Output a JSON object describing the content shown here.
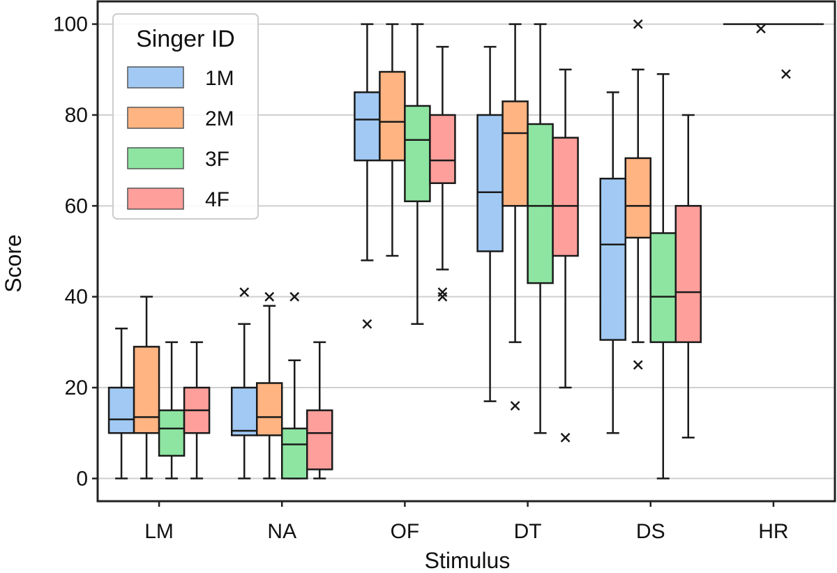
{
  "chart_data": {
    "type": "box",
    "xlabel": "Stimulus",
    "ylabel": "Score",
    "ylim": [
      -5,
      105
    ],
    "yticks": [
      0,
      20,
      40,
      60,
      80,
      100
    ],
    "grid": "horizontal",
    "categories": [
      "LM",
      "NA",
      "OF",
      "DT",
      "DS",
      "HR"
    ],
    "legend": {
      "title": "Singer ID",
      "position": "upper-left",
      "entries": [
        "1M",
        "2M",
        "3F",
        "4F"
      ]
    },
    "series": [
      {
        "name": "1M",
        "color": "#a1c9f4",
        "boxes": [
          {
            "category": "LM",
            "whislo": 0,
            "q1": 10,
            "med": 13,
            "q3": 20,
            "whishi": 33,
            "fliers": []
          },
          {
            "category": "NA",
            "whislo": 0,
            "q1": 9.5,
            "med": 10.5,
            "q3": 20,
            "whishi": 34,
            "fliers": [
              41
            ]
          },
          {
            "category": "OF",
            "whislo": 48,
            "q1": 70,
            "med": 79,
            "q3": 85,
            "whishi": 100,
            "fliers": [
              34
            ]
          },
          {
            "category": "DT",
            "whislo": 17,
            "q1": 50,
            "med": 63,
            "q3": 80,
            "whishi": 95,
            "fliers": []
          },
          {
            "category": "DS",
            "whislo": 10,
            "q1": 30.5,
            "med": 51.5,
            "q3": 66,
            "whishi": 85,
            "fliers": []
          },
          {
            "category": "HR",
            "whislo": 100,
            "q1": 100,
            "med": 100,
            "q3": 100,
            "whishi": 100,
            "fliers": []
          }
        ]
      },
      {
        "name": "2M",
        "color": "#ffb482",
        "boxes": [
          {
            "category": "LM",
            "whislo": 0,
            "q1": 10,
            "med": 13.5,
            "q3": 29,
            "whishi": 40,
            "fliers": []
          },
          {
            "category": "NA",
            "whislo": 0,
            "q1": 9.5,
            "med": 13.5,
            "q3": 21,
            "whishi": 38,
            "fliers": [
              40
            ]
          },
          {
            "category": "OF",
            "whislo": 49,
            "q1": 70,
            "med": 78.5,
            "q3": 89.5,
            "whishi": 100,
            "fliers": []
          },
          {
            "category": "DT",
            "whislo": 30,
            "q1": 60,
            "med": 76,
            "q3": 83,
            "whishi": 100,
            "fliers": [
              16
            ]
          },
          {
            "category": "DS",
            "whislo": 30,
            "q1": 53,
            "med": 60,
            "q3": 70.5,
            "whishi": 90,
            "fliers": [
              25,
              100
            ]
          },
          {
            "category": "HR",
            "whislo": 100,
            "q1": 100,
            "med": 100,
            "q3": 100,
            "whishi": 100,
            "fliers": [
              99
            ]
          }
        ]
      },
      {
        "name": "3F",
        "color": "#8de5a1",
        "boxes": [
          {
            "category": "LM",
            "whislo": 0,
            "q1": 5,
            "med": 11,
            "q3": 15,
            "whishi": 30,
            "fliers": []
          },
          {
            "category": "NA",
            "whislo": 0,
            "q1": 0,
            "med": 7.5,
            "q3": 11,
            "whishi": 26,
            "fliers": [
              40
            ]
          },
          {
            "category": "OF",
            "whislo": 34,
            "q1": 61,
            "med": 74.5,
            "q3": 82,
            "whishi": 100,
            "fliers": []
          },
          {
            "category": "DT",
            "whislo": 10,
            "q1": 43,
            "med": 60,
            "q3": 78,
            "whishi": 100,
            "fliers": []
          },
          {
            "category": "DS",
            "whislo": 0,
            "q1": 30,
            "med": 40,
            "q3": 54,
            "whishi": 89,
            "fliers": []
          },
          {
            "category": "HR",
            "whislo": 100,
            "q1": 100,
            "med": 100,
            "q3": 100,
            "whishi": 100,
            "fliers": [
              89
            ]
          }
        ]
      },
      {
        "name": "4F",
        "color": "#ff9f9b",
        "boxes": [
          {
            "category": "LM",
            "whislo": 0,
            "q1": 10,
            "med": 15,
            "q3": 20,
            "whishi": 30,
            "fliers": []
          },
          {
            "category": "NA",
            "whislo": 0,
            "q1": 2,
            "med": 10,
            "q3": 15,
            "whishi": 30,
            "fliers": []
          },
          {
            "category": "OF",
            "whislo": 46,
            "q1": 65,
            "med": 70,
            "q3": 80,
            "whishi": 95,
            "fliers": [
              40,
              41
            ]
          },
          {
            "category": "DT",
            "whislo": 20,
            "q1": 49,
            "med": 60,
            "q3": 75,
            "whishi": 90,
            "fliers": [
              9
            ]
          },
          {
            "category": "DS",
            "whislo": 9,
            "q1": 30,
            "med": 41,
            "q3": 60,
            "whishi": 80,
            "fliers": []
          },
          {
            "category": "HR",
            "whislo": 100,
            "q1": 100,
            "med": 100,
            "q3": 100,
            "whishi": 100,
            "fliers": []
          }
        ]
      }
    ]
  }
}
